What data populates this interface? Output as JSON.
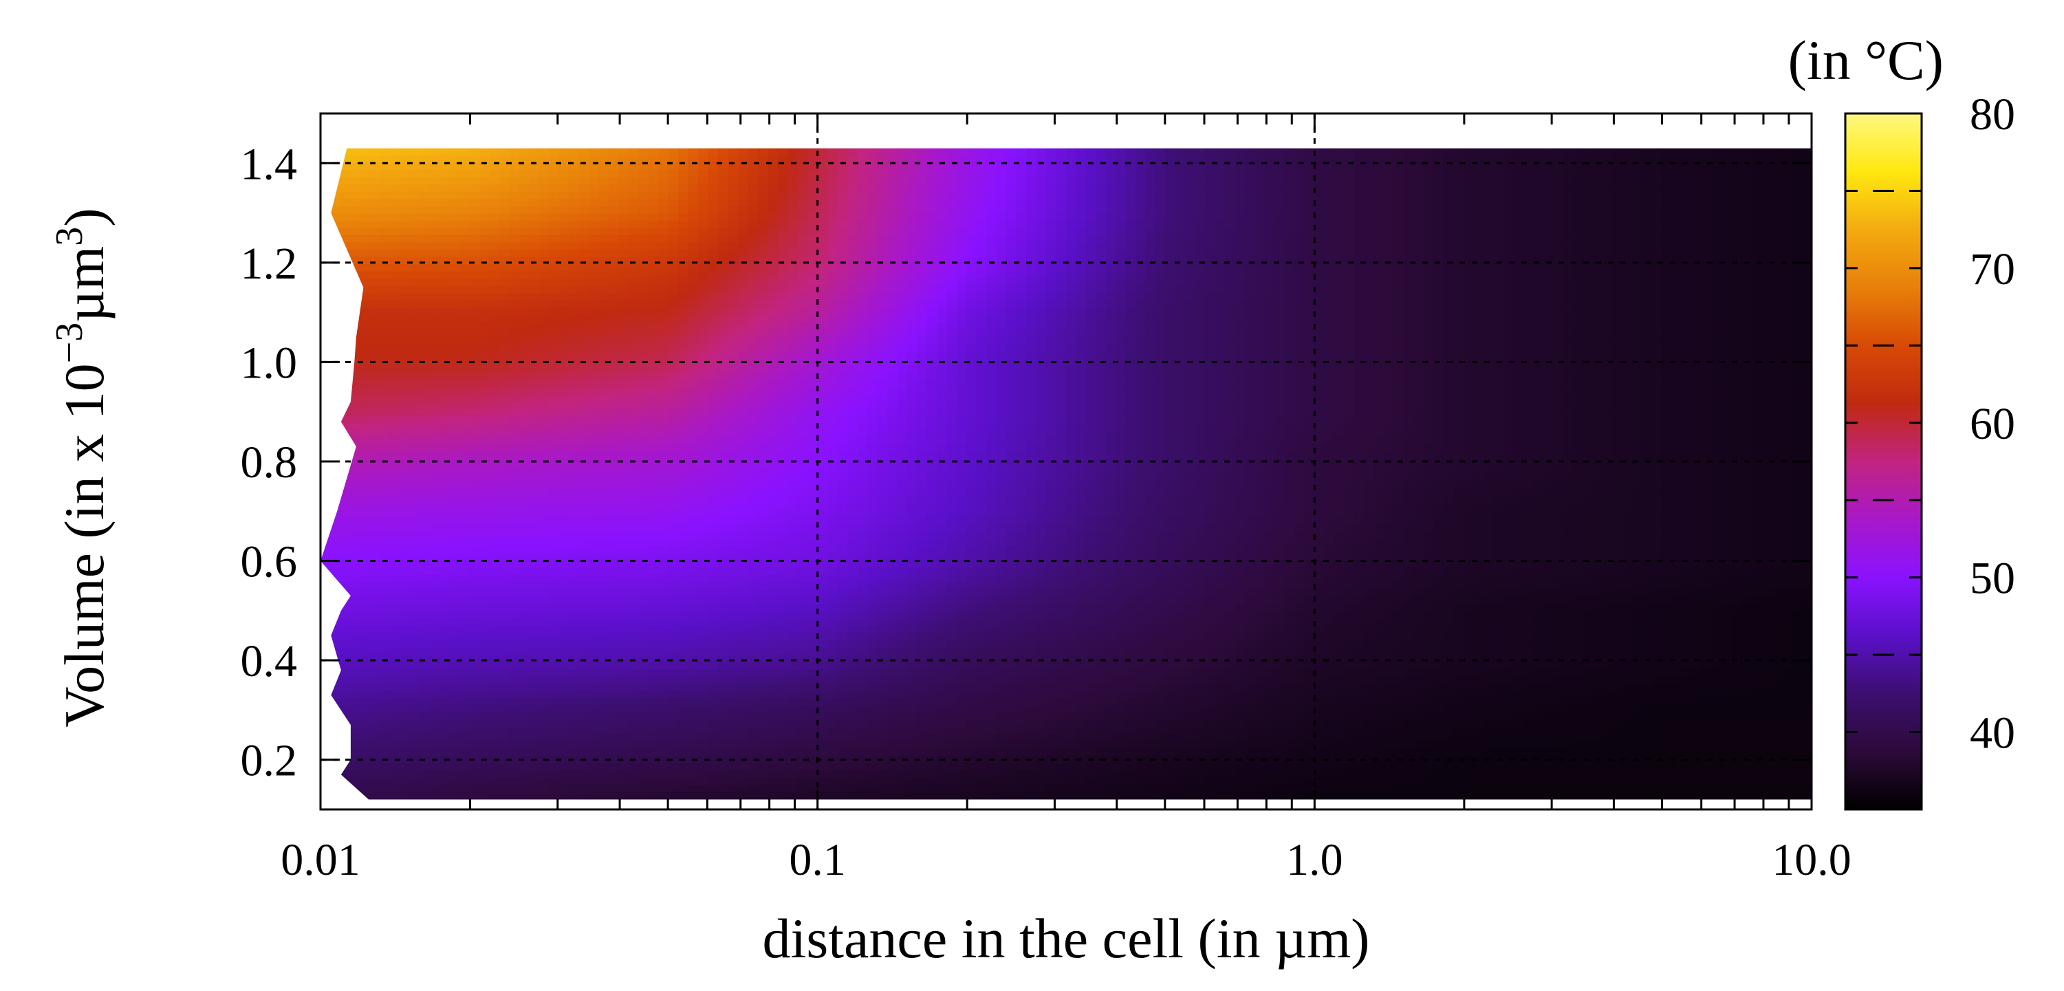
{
  "chart_data": {
    "type": "heatmap",
    "title": "",
    "xlabel": "distance in the cell (in  µm)",
    "ylabel": {
      "prefix": "Volume (in x 10",
      "exponent": "−3",
      "unit": "µm",
      "unit_exponent": "3",
      "suffix": ")"
    },
    "x_scale": "log",
    "xlim": [
      0.01,
      10.0
    ],
    "ylim": [
      0.1,
      1.5
    ],
    "x_ticks": [
      0.01,
      0.1,
      1.0,
      10.0
    ],
    "x_tick_labels": [
      "0.01",
      "0.1",
      "1.0",
      "10.0"
    ],
    "y_ticks": [
      0.2,
      0.4,
      0.6,
      0.8,
      1.0,
      1.2,
      1.4
    ],
    "y_tick_labels": [
      "0.2",
      "0.4",
      "0.6",
      "0.8",
      "1.0",
      "1.2",
      "1.4"
    ],
    "grid": true,
    "colorbar": {
      "title": "(in °C)",
      "range": [
        35,
        80
      ],
      "ticks": [
        40,
        50,
        60,
        70,
        80
      ],
      "tick_labels": [
        "40",
        "50",
        "60",
        "70",
        "80"
      ]
    },
    "volume_rows": [
      0.12,
      0.2,
      0.3,
      0.4,
      0.5,
      0.6,
      0.7,
      0.8,
      0.9,
      1.0,
      1.1,
      1.2,
      1.3,
      1.43
    ],
    "distance_cols": [
      0.01,
      0.02,
      0.05,
      0.1,
      0.2,
      0.5,
      1.0,
      2.0,
      5.0,
      10.0
    ],
    "temperature": [
      [
        40,
        39,
        38,
        37.5,
        37,
        36.5,
        36,
        36,
        36,
        36
      ],
      [
        42,
        41,
        40,
        39,
        38,
        37,
        36.5,
        36,
        36,
        36
      ],
      [
        44,
        43,
        42,
        41,
        39.5,
        38,
        37,
        36.5,
        36,
        36
      ],
      [
        46,
        45.5,
        45,
        44,
        41,
        39,
        37.5,
        37,
        36.5,
        36
      ],
      [
        48,
        47.5,
        47,
        46,
        43,
        40,
        38,
        37,
        36.5,
        36
      ],
      [
        50,
        49.5,
        49,
        48,
        45,
        41,
        38.5,
        37.5,
        37,
        36.5
      ],
      [
        52,
        51.5,
        51,
        49,
        46,
        41.5,
        39,
        37.5,
        37,
        36.5
      ],
      [
        55,
        54,
        53,
        50,
        46.5,
        42,
        39,
        38,
        37,
        36.5
      ],
      [
        59,
        58,
        56,
        51,
        47,
        42,
        39.5,
        38,
        37,
        36.5
      ],
      [
        61,
        61,
        59,
        53,
        47,
        42,
        39.5,
        38,
        37,
        36.5
      ],
      [
        62,
        62,
        61,
        56,
        48,
        42,
        39.5,
        38,
        37,
        36.5
      ],
      [
        66,
        65.5,
        63,
        58,
        50,
        42.5,
        39.5,
        38,
        37,
        36.5
      ],
      [
        70,
        69,
        66,
        59,
        51,
        43,
        39.5,
        38,
        37,
        36.5
      ],
      [
        74,
        73,
        68,
        60,
        52,
        43,
        39.5,
        38,
        37,
        36.5
      ]
    ],
    "left_edge": [
      [
        0.12,
        0.0125
      ],
      [
        0.17,
        0.011
      ],
      [
        0.2,
        0.0115
      ],
      [
        0.27,
        0.0115
      ],
      [
        0.33,
        0.0105
      ],
      [
        0.38,
        0.011
      ],
      [
        0.45,
        0.0105
      ],
      [
        0.5,
        0.011
      ],
      [
        0.53,
        0.0115
      ],
      [
        0.6,
        0.01
      ],
      [
        0.7,
        0.0108
      ],
      [
        0.83,
        0.0118
      ],
      [
        0.88,
        0.011
      ],
      [
        0.92,
        0.0115
      ],
      [
        1.0,
        0.0117
      ],
      [
        1.05,
        0.0118
      ],
      [
        1.15,
        0.0122
      ],
      [
        1.3,
        0.0105
      ],
      [
        1.43,
        0.0113
      ]
    ],
    "colormap": [
      "#000000",
      "#2c0a3a",
      "#3c0f70",
      "#5a10c8",
      "#8a12ff",
      "#a818c8",
      "#c22480",
      "#c02a10",
      "#d84a06",
      "#e8800a",
      "#f4aa10",
      "#ffe810",
      "#fff880"
    ]
  }
}
